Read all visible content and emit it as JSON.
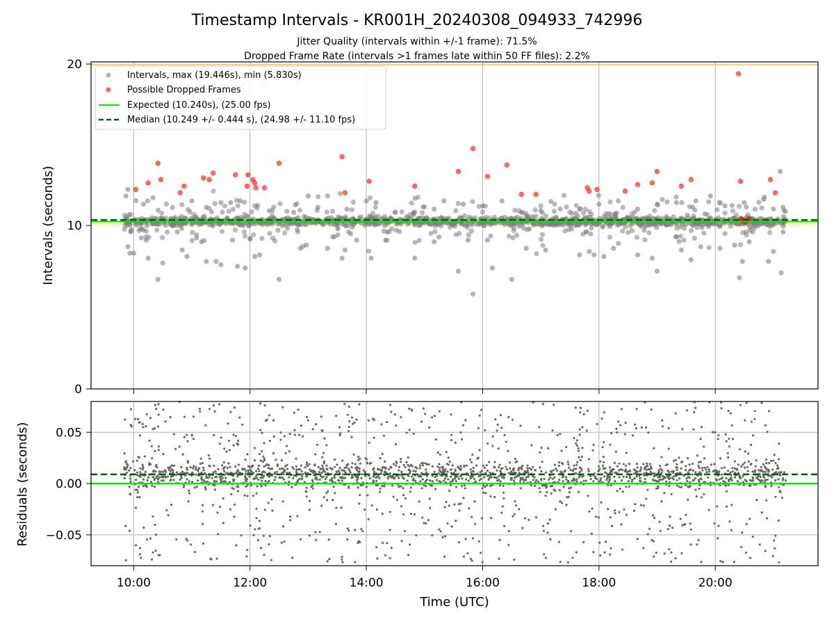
{
  "figure": {
    "title": "Timestamp Intervals - KR001H_20240308_094933_742996",
    "subtitle_1": "Jitter Quality (intervals within +/-1 frame): 71.5%",
    "subtitle_2": "Dropped Frame Rate (intervals >1 frames late within 50 FF files): 2.2%"
  },
  "colors": {
    "intervals": "#808080",
    "dropped": "#ff0000",
    "expected": "#00ee00",
    "median": "#006400",
    "band": "#f5d77a",
    "grid": "#b0b0b0"
  },
  "chart_data": [
    {
      "type": "scatter",
      "xlabel": "",
      "ylabel": "Intervals (seconds)",
      "xlim": [
        "09:16",
        "21:46"
      ],
      "ylim": [
        0,
        20
      ],
      "yticks": [
        "0",
        "10",
        "20"
      ],
      "grid": "x only",
      "legend_position": "top-left",
      "legend": [
        "Intervals, max (19.446s), min (5.830s)",
        "Possible Dropped Frames",
        "Expected (10.240s), (25.00 fps)",
        "Median (10.249 +/- 0.444 s), (24.98 +/- 11.10 fps)"
      ],
      "expected": 10.24,
      "median": 10.249,
      "time_range": [
        "09:50",
        "21:13"
      ],
      "intervals_max": 19.446,
      "intervals_min": 5.83,
      "outliers_low": [
        [
          "09:54",
          8.7
        ],
        [
          "09:56",
          8.3
        ],
        [
          "10:00",
          8.3
        ],
        [
          "10:13",
          9.1
        ],
        [
          "10:15",
          8.0
        ],
        [
          "10:25",
          6.7
        ],
        [
          "10:30",
          7.7
        ],
        [
          "10:45",
          9.6
        ],
        [
          "10:50",
          8.5
        ],
        [
          "10:55",
          8.1
        ],
        [
          "11:10",
          9.0
        ],
        [
          "11:15",
          7.8
        ],
        [
          "11:25",
          7.8
        ],
        [
          "11:30",
          7.6
        ],
        [
          "11:42",
          9.1
        ],
        [
          "11:47",
          7.5
        ],
        [
          "11:55",
          7.4
        ],
        [
          "12:00",
          9.2
        ],
        [
          "12:05",
          8.1
        ],
        [
          "12:10",
          8.2
        ],
        [
          "12:30",
          6.7
        ],
        [
          "12:52",
          8.6
        ],
        [
          "12:58",
          8.8
        ],
        [
          "13:20",
          8.6
        ],
        [
          "13:35",
          8.0
        ],
        [
          "13:38",
          8.5
        ],
        [
          "13:50",
          9.1
        ],
        [
          "14:05",
          8.0
        ],
        [
          "14:20",
          9.1
        ],
        [
          "14:50",
          8.0
        ],
        [
          "15:10",
          9.0
        ],
        [
          "15:15",
          9.3
        ],
        [
          "15:35",
          7.2
        ],
        [
          "15:45",
          9.1
        ],
        [
          "15:50",
          5.8
        ],
        [
          "16:05",
          9.1
        ],
        [
          "16:10",
          7.4
        ],
        [
          "16:30",
          6.7
        ],
        [
          "16:45",
          8.6
        ],
        [
          "17:05",
          8.5
        ],
        [
          "17:40",
          8.2
        ],
        [
          "17:50",
          8.4
        ],
        [
          "17:55",
          8.2
        ],
        [
          "18:05",
          8.1
        ],
        [
          "18:15",
          8.6
        ],
        [
          "18:20",
          8.9
        ],
        [
          "18:40",
          8.2
        ],
        [
          "18:55",
          8.0
        ],
        [
          "19:00",
          7.2
        ],
        [
          "19:20",
          9.3
        ],
        [
          "19:25",
          8.5
        ],
        [
          "19:35",
          7.9
        ],
        [
          "19:45",
          8.7
        ],
        [
          "20:05",
          8.6
        ],
        [
          "20:10",
          9.5
        ],
        [
          "20:20",
          8.8
        ],
        [
          "20:25",
          6.8
        ],
        [
          "20:28",
          7.8
        ],
        [
          "20:35",
          9.0
        ],
        [
          "20:55",
          7.8
        ],
        [
          "21:00",
          8.4
        ],
        [
          "21:08",
          7.1
        ],
        [
          "21:10",
          9.6
        ]
      ],
      "outliers_high": [
        [
          "09:52",
          11.8
        ],
        [
          "09:54",
          12.2
        ],
        [
          "10:10",
          11.3
        ],
        [
          "10:20",
          11.7
        ],
        [
          "10:40",
          11.1
        ],
        [
          "11:00",
          11.5
        ],
        [
          "11:15",
          11.1
        ],
        [
          "11:30",
          11.4
        ],
        [
          "11:40",
          11.4
        ],
        [
          "11:50",
          11.5
        ],
        [
          "12:05",
          11.2
        ],
        [
          "12:20",
          10.9
        ],
        [
          "12:45",
          10.8
        ],
        [
          "13:00",
          11.8
        ],
        [
          "13:10",
          11.1
        ],
        [
          "13:20",
          11.8
        ],
        [
          "13:40",
          11.0
        ],
        [
          "14:00",
          11.5
        ],
        [
          "14:10",
          11.4
        ],
        [
          "14:30",
          10.8
        ],
        [
          "14:50",
          10.8
        ],
        [
          "15:10",
          11.0
        ],
        [
          "15:20",
          11.5
        ],
        [
          "15:40",
          11.3
        ],
        [
          "16:00",
          11.2
        ],
        [
          "16:20",
          11.5
        ],
        [
          "16:40",
          10.8
        ],
        [
          "17:00",
          10.9
        ],
        [
          "17:20",
          11.0
        ],
        [
          "17:40",
          11.0
        ],
        [
          "18:00",
          11.3
        ],
        [
          "18:20",
          11.5
        ],
        [
          "18:40",
          11.0
        ],
        [
          "19:00",
          11.3
        ],
        [
          "19:20",
          11.4
        ],
        [
          "19:40",
          11.5
        ],
        [
          "19:55",
          11.8
        ],
        [
          "20:10",
          11.2
        ],
        [
          "20:30",
          11.4
        ],
        [
          "20:50",
          11.6
        ],
        [
          "21:00",
          11.0
        ],
        [
          "21:07",
          13.3
        ],
        [
          "21:10",
          11.1
        ]
      ],
      "dropped_frames": [
        [
          "10:02",
          12.2
        ],
        [
          "10:15",
          12.6
        ],
        [
          "10:25",
          13.8
        ],
        [
          "10:28",
          12.8
        ],
        [
          "10:48",
          12.0
        ],
        [
          "10:52",
          12.4
        ],
        [
          "11:12",
          12.9
        ],
        [
          "11:18",
          12.8
        ],
        [
          "11:22",
          13.2
        ],
        [
          "11:45",
          13.1
        ],
        [
          "11:57",
          12.4
        ],
        [
          "11:58",
          13.1
        ],
        [
          "12:03",
          12.8
        ],
        [
          "12:05",
          12.6
        ],
        [
          "12:06",
          12.3
        ],
        [
          "12:15",
          12.3
        ],
        [
          "12:30",
          13.8
        ],
        [
          "13:35",
          14.2
        ],
        [
          "13:38",
          12.0
        ],
        [
          "14:03",
          12.7
        ],
        [
          "14:50",
          12.4
        ],
        [
          "15:35",
          13.3
        ],
        [
          "15:50",
          14.7
        ],
        [
          "16:05",
          13.0
        ],
        [
          "16:25",
          13.7
        ],
        [
          "16:40",
          11.9
        ],
        [
          "16:55",
          11.9
        ],
        [
          "17:48",
          12.3
        ],
        [
          "17:50",
          12.1
        ],
        [
          "17:58",
          12.2
        ],
        [
          "18:27",
          12.1
        ],
        [
          "18:40",
          12.5
        ],
        [
          "18:55",
          12.6
        ],
        [
          "19:00",
          13.3
        ],
        [
          "19:25",
          12.4
        ],
        [
          "19:35",
          12.8
        ],
        [
          "20:24",
          19.4
        ],
        [
          "20:26",
          12.7
        ],
        [
          "20:27",
          10.4
        ],
        [
          "20:29",
          10.3
        ],
        [
          "20:31",
          10.2
        ],
        [
          "20:33",
          10.3
        ],
        [
          "20:35",
          10.4
        ],
        [
          "20:57",
          12.8
        ],
        [
          "21:02",
          12.0
        ]
      ]
    },
    {
      "type": "scatter",
      "xlabel": "Time (UTC)",
      "ylabel": "Residuals (seconds)",
      "xlim": [
        "09:16",
        "21:46"
      ],
      "ylim": [
        -0.08,
        0.08
      ],
      "xticks": [
        "10:00",
        "12:00",
        "14:00",
        "16:00",
        "18:00",
        "20:00"
      ],
      "yticks": [
        "−0.05",
        "0.00",
        "0.05"
      ],
      "grid": "both",
      "expected_residual": 0.0,
      "median_residual": 0.009,
      "residual_spread_note": "dense band between -0.01 and 0.025, sparse points filling -0.08 to 0.08"
    }
  ]
}
